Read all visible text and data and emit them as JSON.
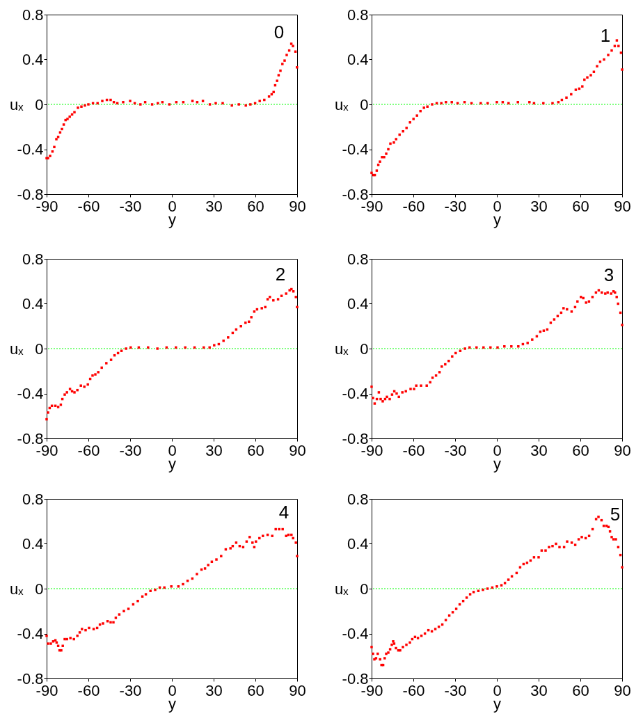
{
  "chart_data": [
    {
      "type": "scatter",
      "xlabel": "y",
      "ylabel": "uₓ",
      "annotations": [
        "0"
      ],
      "marker": "square",
      "xlim": [
        -90,
        90
      ],
      "xticks": [
        -90,
        -60,
        -30,
        0,
        30,
        60,
        90
      ],
      "ylim": [
        -0.8,
        0.8
      ],
      "yticks": [
        -0.8,
        -0.4,
        0,
        0.4,
        0.8
      ],
      "ref_lines": [
        {
          "axis": "y",
          "value": 0,
          "color": "#00ff00",
          "line_style": "dotted"
        }
      ],
      "x": [
        -90,
        -89,
        -87.5,
        -85.8,
        -84.5,
        -83,
        -81.7,
        -80.3,
        -79,
        -77.7,
        -76.4,
        -75,
        -73.4,
        -71.7,
        -70,
        -67.5,
        -65,
        -62.5,
        -60,
        -56.7,
        -53.4,
        -50,
        -46.7,
        -44,
        -41.7,
        -39.2,
        -35,
        -30,
        -26.7,
        -22.6,
        -19.2,
        -14.2,
        -10.1,
        -6.8,
        -1.8,
        3.2,
        8.2,
        14.8,
        18.2,
        22.3,
        27.3,
        31.5,
        36.5,
        43.1,
        48.1,
        53.1,
        56.4,
        59.8,
        63.1,
        66.4,
        69.8,
        71.7,
        73.1,
        74.2,
        75.6,
        76.7,
        78,
        79.4,
        81,
        82.5,
        84.3,
        85.8,
        87,
        88.8,
        89.9
      ],
      "series": [
        {
          "color": "#ff0000",
          "values": [
            -0.48,
            -0.48,
            -0.46,
            -0.42,
            -0.38,
            -0.31,
            -0.29,
            -0.25,
            -0.22,
            -0.18,
            -0.14,
            -0.13,
            -0.11,
            -0.09,
            -0.07,
            -0.03,
            -0.02,
            -0.01,
            0,
            0.01,
            0.01,
            0.03,
            0.04,
            0.04,
            0.02,
            0.01,
            0.02,
            0.03,
            0.01,
            0,
            0.02,
            0,
            0.01,
            0.02,
            0,
            0.02,
            0.02,
            0.03,
            0.02,
            0.03,
            0,
            0.01,
            0.01,
            -0.01,
            0,
            -0.01,
            0,
            0.01,
            0.03,
            0.04,
            0.07,
            0.09,
            0.11,
            0.17,
            0.21,
            0.26,
            0.3,
            0.36,
            0.39,
            0.44,
            0.48,
            0.54,
            0.52,
            0.47,
            0.33
          ]
        }
      ]
    },
    {
      "type": "scatter",
      "xlabel": "y",
      "ylabel": "uₓ",
      "annotations": [
        "1"
      ],
      "marker": "square",
      "xlim": [
        -90,
        90
      ],
      "xticks": [
        -90,
        -60,
        -30,
        0,
        30,
        60,
        90
      ],
      "ylim": [
        -0.8,
        0.8
      ],
      "yticks": [
        -0.8,
        -0.4,
        0,
        0.4,
        0.8
      ],
      "ref_lines": [
        {
          "axis": "y",
          "value": 0,
          "color": "#00ff00",
          "line_style": "dotted"
        }
      ],
      "x": [
        -90,
        -88.8,
        -87.7,
        -86.3,
        -85.2,
        -84,
        -82.5,
        -81,
        -79.5,
        -78,
        -76.5,
        -74,
        -72.4,
        -69.9,
        -67.4,
        -64.9,
        -62.4,
        -59.9,
        -57.4,
        -54.9,
        -52.4,
        -49.9,
        -46.5,
        -43.2,
        -39.9,
        -36.6,
        -32.4,
        -28.2,
        -23.2,
        -18.2,
        -11.6,
        -6.6,
        0,
        4.2,
        8.4,
        15.1,
        23.4,
        26.7,
        33.4,
        40,
        44.2,
        46.7,
        50,
        53.4,
        56.7,
        59.2,
        61.4,
        62.9,
        65,
        67.5,
        69.7,
        72,
        74.2,
        77,
        80,
        82.5,
        84.7,
        86.2,
        87.4,
        89.2,
        90
      ],
      "series": [
        {
          "color": "#ff0000",
          "values": [
            -0.61,
            -0.63,
            -0.63,
            -0.59,
            -0.54,
            -0.51,
            -0.47,
            -0.47,
            -0.44,
            -0.4,
            -0.35,
            -0.34,
            -0.31,
            -0.27,
            -0.24,
            -0.21,
            -0.16,
            -0.13,
            -0.1,
            -0.06,
            -0.03,
            -0.02,
            0,
            0.01,
            0.01,
            0.02,
            0.02,
            0.01,
            0.02,
            0.01,
            0.01,
            0.01,
            0.02,
            0.02,
            0.01,
            0.02,
            0.02,
            0.01,
            0.01,
            0.01,
            0.02,
            0.04,
            0.06,
            0.09,
            0.13,
            0.14,
            0.16,
            0.22,
            0.24,
            0.26,
            0.29,
            0.34,
            0.38,
            0.4,
            0.44,
            0.48,
            0.52,
            0.57,
            0.52,
            0.46,
            0.31
          ]
        }
      ]
    },
    {
      "type": "scatter",
      "xlabel": "y",
      "ylabel": "uₓ",
      "annotations": [
        "2"
      ],
      "marker": "square",
      "xlim": [
        -90,
        90
      ],
      "xticks": [
        -90,
        -60,
        -30,
        0,
        30,
        60,
        90
      ],
      "ylim": [
        -0.8,
        0.8
      ],
      "yticks": [
        -0.8,
        -0.4,
        0,
        0.4,
        0.8
      ],
      "ref_lines": [
        {
          "axis": "y",
          "value": 0,
          "color": "#00ff00",
          "line_style": "dotted"
        }
      ],
      "x": [
        -90,
        -89,
        -87.8,
        -86.2,
        -83.7,
        -81.7,
        -79.8,
        -78.7,
        -77,
        -75.4,
        -73.2,
        -71.7,
        -70,
        -67.9,
        -65.4,
        -62.9,
        -60.4,
        -58.7,
        -57,
        -55,
        -52.9,
        -50.4,
        -47.1,
        -43.7,
        -41.2,
        -38.7,
        -36.2,
        -32.9,
        -29.6,
        -23.8,
        -17.1,
        -10.4,
        -3.8,
        2.9,
        9.6,
        16.3,
        22.9,
        27.1,
        30.4,
        33.7,
        37.1,
        40.4,
        43.7,
        46.2,
        49.6,
        52.9,
        55.4,
        57.1,
        59.2,
        61.2,
        64.6,
        67.1,
        68.8,
        70.4,
        72.9,
        76.3,
        78.8,
        82.1,
        84.6,
        85.9,
        87.3,
        89.1,
        90
      ],
      "series": [
        {
          "color": "#ff0000",
          "values": [
            -0.63,
            -0.57,
            -0.53,
            -0.51,
            -0.51,
            -0.52,
            -0.5,
            -0.45,
            -0.41,
            -0.39,
            -0.36,
            -0.38,
            -0.39,
            -0.37,
            -0.33,
            -0.34,
            -0.32,
            -0.27,
            -0.24,
            -0.23,
            -0.21,
            -0.17,
            -0.13,
            -0.1,
            -0.06,
            -0.04,
            -0.02,
            0,
            0.01,
            0.01,
            0.01,
            0,
            0.01,
            0.01,
            0.01,
            0.01,
            0.01,
            0.01,
            0.03,
            0.04,
            0.07,
            0.1,
            0.14,
            0.17,
            0.2,
            0.23,
            0.24,
            0.28,
            0.33,
            0.35,
            0.36,
            0.37,
            0.44,
            0.46,
            0.43,
            0.44,
            0.47,
            0.49,
            0.52,
            0.53,
            0.51,
            0.46,
            0.37
          ]
        }
      ]
    },
    {
      "type": "scatter",
      "xlabel": "y",
      "ylabel": "uₓ",
      "annotations": [
        "3"
      ],
      "marker": "square",
      "xlim": [
        -90,
        90
      ],
      "xticks": [
        -90,
        -60,
        -30,
        0,
        30,
        60,
        90
      ],
      "ylim": [
        -0.8,
        0.8
      ],
      "yticks": [
        -0.8,
        -0.4,
        0,
        0.4,
        0.8
      ],
      "ref_lines": [
        {
          "axis": "y",
          "value": 0,
          "color": "#00ff00",
          "line_style": "dotted"
        }
      ],
      "x": [
        -90,
        -89,
        -87.8,
        -86.2,
        -84.8,
        -83.5,
        -82,
        -80.3,
        -79,
        -77,
        -75.3,
        -73.7,
        -72,
        -70.4,
        -67.9,
        -65.4,
        -62,
        -59.5,
        -57.9,
        -54.5,
        -50.4,
        -47.9,
        -46.2,
        -43.7,
        -41.2,
        -39.6,
        -37.1,
        -34.6,
        -32.1,
        -29.6,
        -26.3,
        -22.9,
        -19.6,
        -14.6,
        -9.6,
        -4.6,
        0.5,
        5.4,
        10.4,
        15.4,
        18.7,
        22.1,
        25.4,
        28.7,
        31.2,
        33.7,
        36.2,
        38.7,
        41.2,
        43.7,
        46.2,
        47.9,
        50.4,
        53.7,
        56.2,
        57.9,
        60.4,
        62.1,
        64.1,
        66.2,
        68.7,
        71.2,
        73.2,
        75.4,
        77.9,
        79.6,
        82.1,
        83.8,
        84.9,
        86.1,
        87.1,
        88.8,
        90
      ],
      "series": [
        {
          "color": "#ff0000",
          "values": [
            -0.34,
            -0.44,
            -0.49,
            -0.45,
            -0.39,
            -0.45,
            -0.47,
            -0.45,
            -0.43,
            -0.45,
            -0.41,
            -0.38,
            -0.4,
            -0.43,
            -0.39,
            -0.38,
            -0.36,
            -0.36,
            -0.33,
            -0.33,
            -0.33,
            -0.3,
            -0.26,
            -0.24,
            -0.21,
            -0.16,
            -0.14,
            -0.11,
            -0.07,
            -0.04,
            -0.02,
            0,
            0.01,
            0.01,
            0.01,
            0.01,
            0.01,
            0.02,
            0.02,
            0.02,
            0.04,
            0.05,
            0.08,
            0.11,
            0.15,
            0.16,
            0.17,
            0.23,
            0.26,
            0.29,
            0.32,
            0.36,
            0.35,
            0.33,
            0.37,
            0.42,
            0.46,
            0.45,
            0.41,
            0.42,
            0.46,
            0.5,
            0.52,
            0.5,
            0.49,
            0.5,
            0.49,
            0.51,
            0.5,
            0.46,
            0.4,
            0.32,
            0.21
          ]
        }
      ]
    },
    {
      "type": "scatter",
      "xlabel": "y",
      "ylabel": "uₓ",
      "annotations": [
        "4"
      ],
      "marker": "square",
      "xlim": [
        -90,
        90
      ],
      "xticks": [
        -90,
        -60,
        -30,
        0,
        30,
        60,
        90
      ],
      "ylim": [
        -0.8,
        0.8
      ],
      "yticks": [
        -0.8,
        -0.4,
        0,
        0.4,
        0.8
      ],
      "ref_lines": [
        {
          "axis": "y",
          "value": 0,
          "color": "#00ff00",
          "line_style": "dotted"
        }
      ],
      "x": [
        -90,
        -89,
        -87,
        -85.3,
        -83.7,
        -82.8,
        -81.7,
        -80.7,
        -79.5,
        -78.4,
        -77,
        -75.4,
        -72.9,
        -70.4,
        -67.9,
        -66.2,
        -64.6,
        -62,
        -59.5,
        -56.2,
        -53.7,
        -51.7,
        -49.5,
        -46.2,
        -44,
        -42,
        -40.3,
        -37.8,
        -34.5,
        -31.2,
        -27.8,
        -24.5,
        -21.2,
        -18.7,
        -15.4,
        -12,
        -8.7,
        -5.4,
        -0.4,
        4.7,
        8,
        11.3,
        14.7,
        18,
        21.3,
        23.8,
        26.1,
        28.7,
        32,
        35.4,
        38.7,
        42.1,
        43.7,
        46.2,
        48.7,
        51.2,
        53.7,
        55.9,
        57.9,
        59.2,
        60.4,
        62.9,
        65.4,
        68.8,
        72.1,
        74.6,
        77.1,
        79.6,
        82.1,
        83.8,
        85.9,
        87.1,
        89.1,
        90
      ],
      "series": [
        {
          "color": "#ff0000",
          "values": [
            -0.42,
            -0.49,
            -0.49,
            -0.47,
            -0.46,
            -0.48,
            -0.51,
            -0.55,
            -0.55,
            -0.51,
            -0.45,
            -0.45,
            -0.44,
            -0.45,
            -0.42,
            -0.39,
            -0.36,
            -0.37,
            -0.35,
            -0.36,
            -0.35,
            -0.32,
            -0.31,
            -0.29,
            -0.3,
            -0.3,
            -0.26,
            -0.23,
            -0.2,
            -0.18,
            -0.14,
            -0.11,
            -0.07,
            -0.05,
            -0.02,
            -0.01,
            0.01,
            0.01,
            0.02,
            0.02,
            0.04,
            0.07,
            0.09,
            0.13,
            0.17,
            0.18,
            0.21,
            0.24,
            0.26,
            0.29,
            0.35,
            0.36,
            0.38,
            0.41,
            0.38,
            0.37,
            0.42,
            0.46,
            0.41,
            0.37,
            0.42,
            0.45,
            0.47,
            0.48,
            0.47,
            0.53,
            0.53,
            0.53,
            0.47,
            0.48,
            0.48,
            0.45,
            0.41,
            0.29
          ]
        }
      ]
    },
    {
      "type": "scatter",
      "xlabel": "y",
      "ylabel": "uₓ",
      "annotations": [
        "5"
      ],
      "marker": "square",
      "xlim": [
        -90,
        90
      ],
      "xticks": [
        -90,
        -60,
        -30,
        0,
        30,
        60,
        90
      ],
      "ylim": [
        -0.8,
        0.8
      ],
      "yticks": [
        -0.8,
        -0.4,
        0,
        0.4,
        0.8
      ],
      "ref_lines": [
        {
          "axis": "y",
          "value": 0,
          "color": "#00ff00",
          "line_style": "dotted"
        }
      ],
      "x": [
        -90,
        -89,
        -88,
        -86.8,
        -85.6,
        -83.9,
        -82.9,
        -81.7,
        -80.6,
        -79.5,
        -78,
        -76.7,
        -75.5,
        -74.5,
        -73.8,
        -72.5,
        -70.8,
        -69.5,
        -67.5,
        -65,
        -62.5,
        -60.8,
        -58.8,
        -56.7,
        -54.2,
        -51.7,
        -49.2,
        -46.7,
        -44.2,
        -41.7,
        -39.2,
        -36.7,
        -34.2,
        -31.7,
        -29.2,
        -26.7,
        -24.2,
        -21.7,
        -19.2,
        -16.7,
        -13.3,
        -10,
        -6.7,
        -3.3,
        0,
        3.3,
        5.8,
        8.3,
        10.8,
        14.2,
        16.7,
        19.2,
        21.7,
        24.2,
        26.7,
        30,
        32.2,
        35,
        37.5,
        40,
        42.5,
        45,
        48.3,
        50.5,
        53.8,
        56.3,
        58.8,
        61,
        63.8,
        66.3,
        68.8,
        71.3,
        73,
        75.2,
        76.8,
        78.8,
        80.2,
        81.3,
        82.5,
        83.8,
        85.5,
        87.2,
        88.8,
        90
      ],
      "series": [
        {
          "color": "#ff0000",
          "values": [
            -0.52,
            -0.58,
            -0.63,
            -0.62,
            -0.58,
            -0.63,
            -0.68,
            -0.68,
            -0.62,
            -0.58,
            -0.57,
            -0.54,
            -0.5,
            -0.47,
            -0.49,
            -0.53,
            -0.55,
            -0.55,
            -0.52,
            -0.5,
            -0.48,
            -0.45,
            -0.43,
            -0.44,
            -0.42,
            -0.4,
            -0.37,
            -0.38,
            -0.36,
            -0.34,
            -0.32,
            -0.28,
            -0.24,
            -0.21,
            -0.18,
            -0.14,
            -0.11,
            -0.08,
            -0.05,
            -0.03,
            -0.02,
            -0.01,
            0,
            0.01,
            0.02,
            0.03,
            0.05,
            0.08,
            0.11,
            0.14,
            0.19,
            0.22,
            0.23,
            0.25,
            0.28,
            0.28,
            0.34,
            0.34,
            0.37,
            0.38,
            0.4,
            0.37,
            0.37,
            0.42,
            0.41,
            0.39,
            0.44,
            0.46,
            0.45,
            0.47,
            0.53,
            0.62,
            0.64,
            0.61,
            0.56,
            0.56,
            0.55,
            0.51,
            0.46,
            0.44,
            0.44,
            0.37,
            0.3,
            0.19
          ]
        }
      ]
    }
  ]
}
